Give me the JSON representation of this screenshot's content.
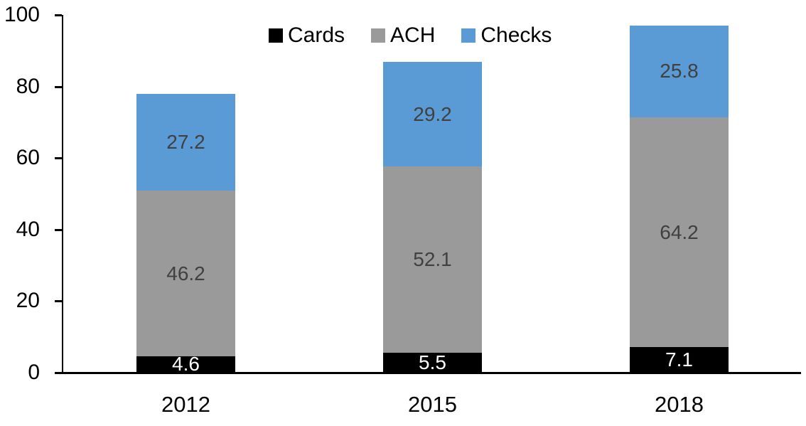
{
  "chart_data": {
    "type": "bar",
    "stacked": true,
    "title": "",
    "xlabel": "",
    "ylabel": "",
    "categories": [
      "2012",
      "2015",
      "2018"
    ],
    "series": [
      {
        "name": "Cards",
        "values": [
          4.6,
          5.5,
          7.1
        ],
        "color": "#000000",
        "label_color": "#ffffff"
      },
      {
        "name": "ACH",
        "values": [
          46.2,
          52.1,
          64.2
        ],
        "color": "#9a9a9a",
        "label_color": "#404040"
      },
      {
        "name": "Checks",
        "values": [
          27.2,
          29.2,
          25.8
        ],
        "color": "#5b9bd5",
        "label_color": "#404040"
      }
    ],
    "totals": [
      78.0,
      86.8,
      97.1
    ],
    "y_ticks": [
      0,
      20,
      40,
      60,
      80,
      100
    ],
    "ylim": [
      0,
      100
    ],
    "grid": false,
    "legend_position": "top-center",
    "axis_color": "#000000"
  }
}
